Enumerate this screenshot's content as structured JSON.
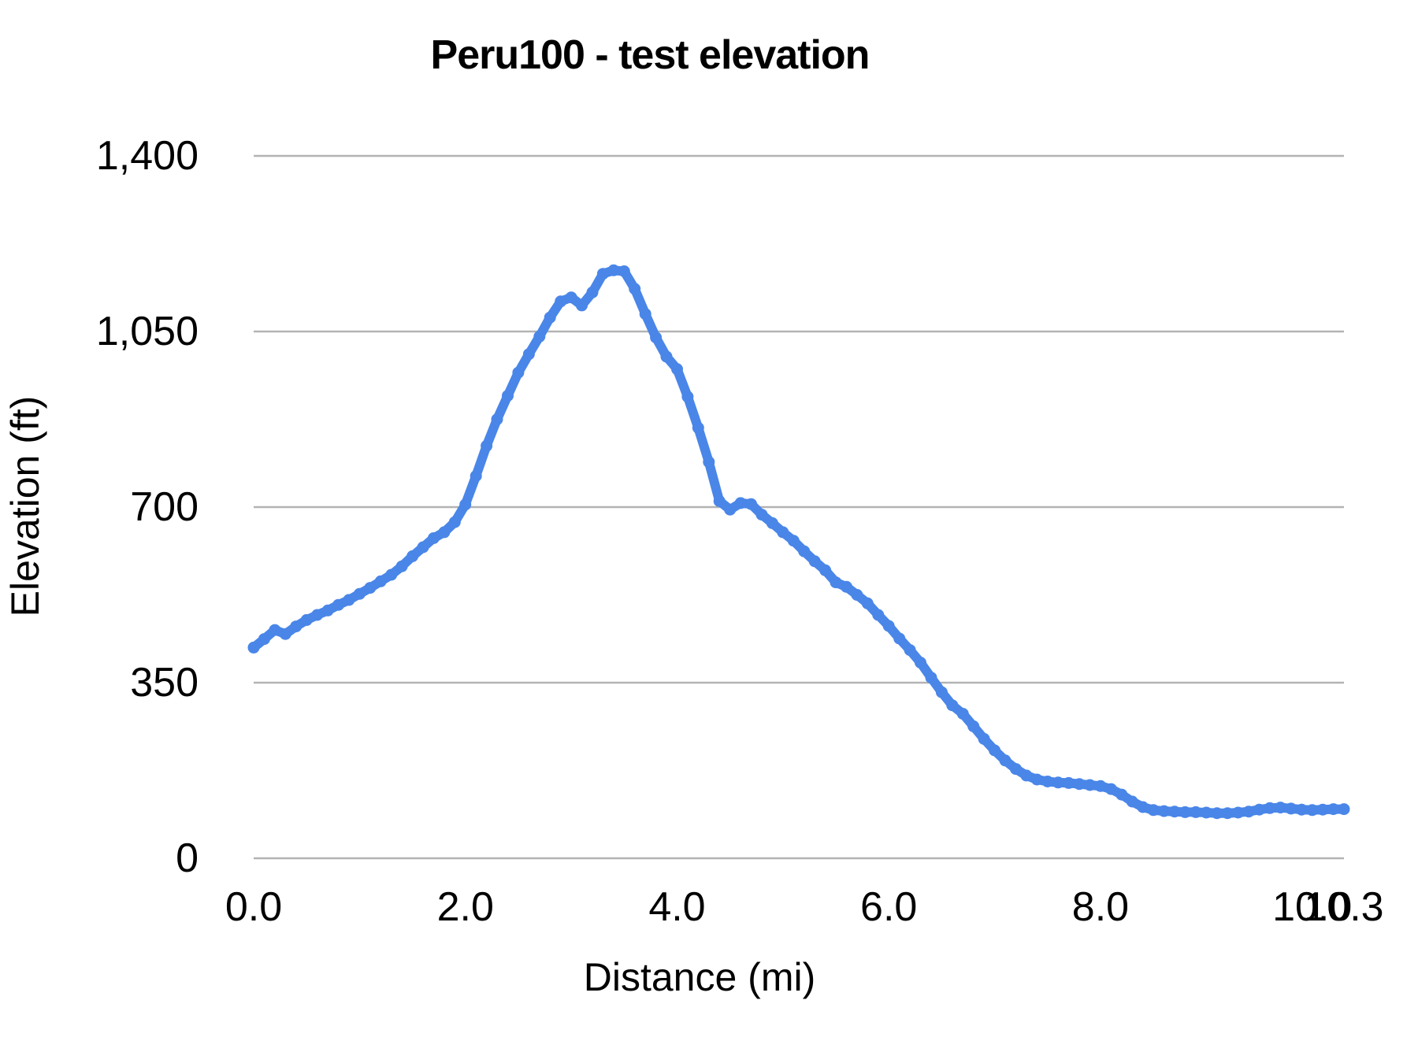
{
  "chart_data": {
    "type": "line",
    "title": "Peru100 - test elevation",
    "xlabel": "Distance (mi)",
    "ylabel": "Elevation (ft)",
    "xlim": [
      0,
      10.3
    ],
    "ylim": [
      0,
      1400
    ],
    "grid": "horizontal",
    "legend": "none",
    "line_color": "#4a86e8",
    "grid_color": "#b3b3b3",
    "text_color": "#000000",
    "x_ticks": [
      {
        "value": 0.0,
        "label": "0.0"
      },
      {
        "value": 2.0,
        "label": "2.0"
      },
      {
        "value": 4.0,
        "label": "4.0"
      },
      {
        "value": 6.0,
        "label": "6.0"
      },
      {
        "value": 8.0,
        "label": "8.0"
      },
      {
        "value": 10.0,
        "label": "10.0"
      },
      {
        "value": 10.3,
        "label": "10.3"
      }
    ],
    "y_ticks": [
      {
        "value": 0,
        "label": "0"
      },
      {
        "value": 350,
        "label": "350"
      },
      {
        "value": 700,
        "label": "700"
      },
      {
        "value": 1050,
        "label": "1,050"
      },
      {
        "value": 1400,
        "label": "1,400"
      }
    ],
    "series": [
      {
        "name": "elevation",
        "points": [
          [
            0.0,
            420
          ],
          [
            0.1,
            437
          ],
          [
            0.2,
            455
          ],
          [
            0.3,
            447
          ],
          [
            0.4,
            462
          ],
          [
            0.5,
            475
          ],
          [
            0.6,
            485
          ],
          [
            0.7,
            494
          ],
          [
            0.8,
            505
          ],
          [
            0.9,
            515
          ],
          [
            1.0,
            527
          ],
          [
            1.1,
            539
          ],
          [
            1.2,
            552
          ],
          [
            1.3,
            565
          ],
          [
            1.4,
            582
          ],
          [
            1.5,
            602
          ],
          [
            1.6,
            620
          ],
          [
            1.7,
            638
          ],
          [
            1.8,
            650
          ],
          [
            1.9,
            670
          ],
          [
            2.0,
            705
          ],
          [
            2.1,
            762
          ],
          [
            2.2,
            822
          ],
          [
            2.3,
            875
          ],
          [
            2.4,
            922
          ],
          [
            2.5,
            968
          ],
          [
            2.6,
            1005
          ],
          [
            2.7,
            1040
          ],
          [
            2.8,
            1078
          ],
          [
            2.9,
            1110
          ],
          [
            3.0,
            1118
          ],
          [
            3.1,
            1102
          ],
          [
            3.2,
            1128
          ],
          [
            3.3,
            1165
          ],
          [
            3.4,
            1172
          ],
          [
            3.5,
            1170
          ],
          [
            3.6,
            1135
          ],
          [
            3.7,
            1085
          ],
          [
            3.8,
            1038
          ],
          [
            3.9,
            1000
          ],
          [
            4.0,
            975
          ],
          [
            4.1,
            920
          ],
          [
            4.2,
            858
          ],
          [
            4.3,
            790
          ],
          [
            4.4,
            712
          ],
          [
            4.5,
            695
          ],
          [
            4.6,
            708
          ],
          [
            4.7,
            706
          ],
          [
            4.8,
            685
          ],
          [
            4.9,
            668
          ],
          [
            5.0,
            650
          ],
          [
            5.1,
            633
          ],
          [
            5.2,
            612
          ],
          [
            5.3,
            592
          ],
          [
            5.4,
            574
          ],
          [
            5.5,
            550
          ],
          [
            5.6,
            541
          ],
          [
            5.7,
            525
          ],
          [
            5.8,
            508
          ],
          [
            5.9,
            485
          ],
          [
            6.0,
            463
          ],
          [
            6.1,
            438
          ],
          [
            6.2,
            415
          ],
          [
            6.3,
            390
          ],
          [
            6.4,
            360
          ],
          [
            6.5,
            331
          ],
          [
            6.6,
            305
          ],
          [
            6.7,
            288
          ],
          [
            6.8,
            263
          ],
          [
            6.9,
            238
          ],
          [
            7.0,
            215
          ],
          [
            7.1,
            195
          ],
          [
            7.2,
            178
          ],
          [
            7.3,
            165
          ],
          [
            7.4,
            157
          ],
          [
            7.5,
            153
          ],
          [
            7.6,
            151
          ],
          [
            7.7,
            150
          ],
          [
            7.8,
            148
          ],
          [
            7.9,
            146
          ],
          [
            8.0,
            144
          ],
          [
            8.1,
            138
          ],
          [
            8.2,
            127
          ],
          [
            8.3,
            113
          ],
          [
            8.4,
            102
          ],
          [
            8.5,
            96
          ],
          [
            8.6,
            94
          ],
          [
            8.7,
            93
          ],
          [
            8.8,
            92
          ],
          [
            8.9,
            92
          ],
          [
            9.0,
            91
          ],
          [
            9.1,
            90
          ],
          [
            9.2,
            90
          ],
          [
            9.3,
            91
          ],
          [
            9.4,
            93
          ],
          [
            9.5,
            97
          ],
          [
            9.6,
            100
          ],
          [
            9.7,
            101
          ],
          [
            9.8,
            99
          ],
          [
            9.9,
            97
          ],
          [
            10.0,
            96
          ],
          [
            10.1,
            97
          ],
          [
            10.2,
            98
          ],
          [
            10.3,
            98
          ]
        ]
      }
    ]
  }
}
